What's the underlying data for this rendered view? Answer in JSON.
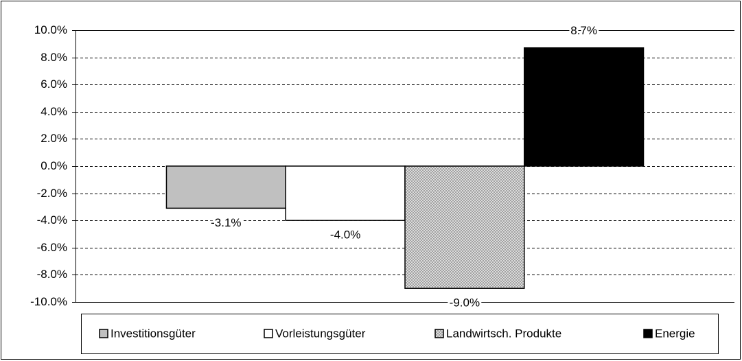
{
  "chart_data": {
    "type": "bar",
    "categories": [
      null
    ],
    "series": [
      {
        "name": "Investitionsgüter",
        "color": "#c0c0c0",
        "values": [
          -3.1
        ],
        "value_labels": [
          "-3.1%"
        ]
      },
      {
        "name": "Vorleistungsgüter",
        "color": "#ffffff",
        "values": [
          -4.0
        ],
        "value_labels": [
          "-4.0%"
        ]
      },
      {
        "name": "Landwirtsch. Produkte",
        "color": "#a0a0a0",
        "pattern": "crosshatch",
        "values": [
          -9.0
        ],
        "value_labels": [
          "-9.0%"
        ]
      },
      {
        "name": "Energie",
        "color": "#000000",
        "values": [
          8.7
        ],
        "value_labels": [
          "8.7%"
        ]
      }
    ],
    "ylim": [
      -10,
      10
    ],
    "yticks": [
      {
        "value": -10,
        "label": "-10.0%"
      },
      {
        "value": -8,
        "label": "-8.0%"
      },
      {
        "value": -6,
        "label": "-6.0%"
      },
      {
        "value": -4,
        "label": "-4.0%"
      },
      {
        "value": -2,
        "label": "-2.0%"
      },
      {
        "value": 0,
        "label": "0.0%"
      },
      {
        "value": 2,
        "label": "2.0%"
      },
      {
        "value": 4,
        "label": "4.0%"
      },
      {
        "value": 6,
        "label": "6.0%"
      },
      {
        "value": 8,
        "label": "8.0%"
      },
      {
        "value": 10,
        "label": "10.0%"
      }
    ],
    "grid": true,
    "legend": "bottom"
  }
}
